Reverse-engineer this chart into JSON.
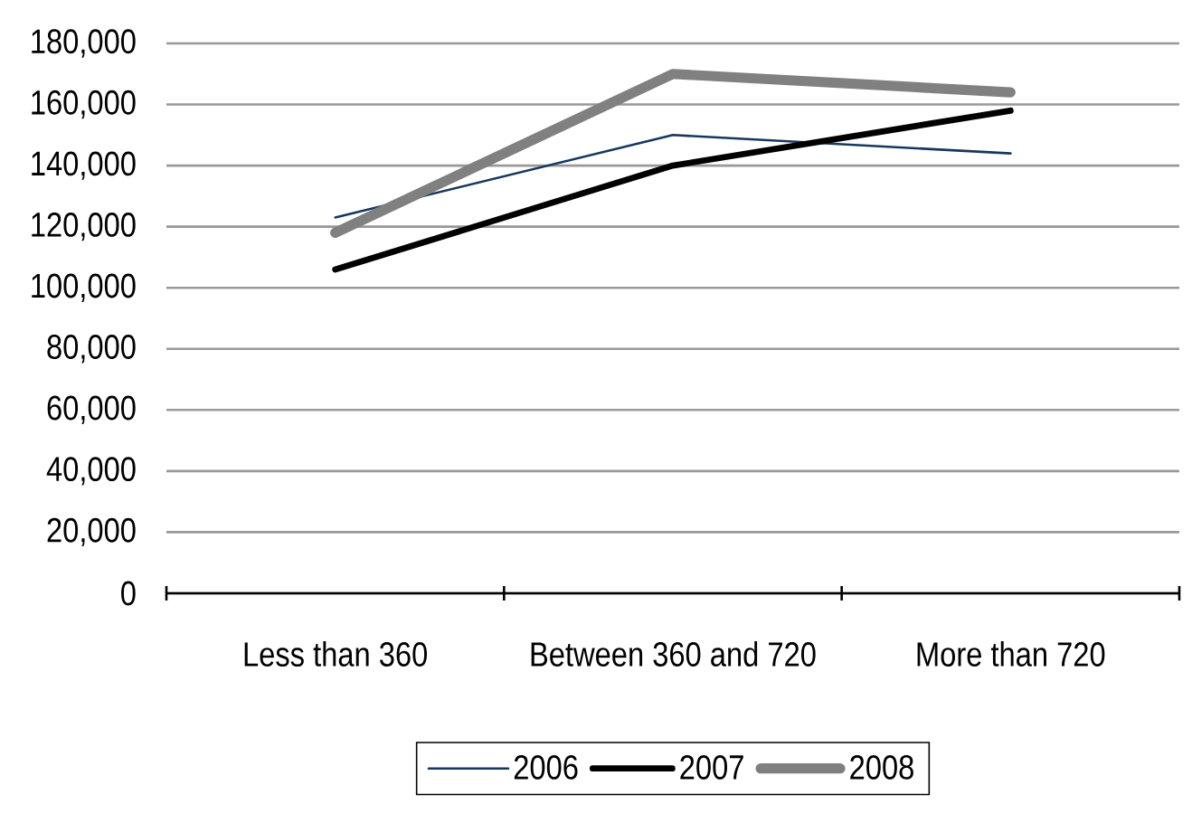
{
  "chart_data": {
    "type": "line",
    "categories": [
      "Less than 360",
      "Between 360 and 720",
      "More than 720"
    ],
    "series": [
      {
        "name": "2006",
        "color": "#17375e",
        "values": [
          123000,
          150000,
          144000
        ]
      },
      {
        "name": "2007",
        "color": "#000000",
        "values": [
          106000,
          140000,
          158000
        ]
      },
      {
        "name": "2008",
        "color": "#808080",
        "values": [
          118000,
          170000,
          164000
        ]
      }
    ],
    "ylim": [
      0,
      180000
    ],
    "yticks": [
      0,
      {
        "value": 20000,
        "label": "20,000"
      },
      {
        "value": 40000,
        "label": "40,000"
      },
      {
        "value": 60000,
        "label": "60,000"
      },
      {
        "value": 80000,
        "label": "80,000"
      },
      {
        "value": 100000,
        "label": "100,000"
      },
      {
        "value": 120000,
        "label": "120,000"
      },
      {
        "value": 140000,
        "label": "140,000"
      },
      {
        "value": 160000,
        "label": "160,000"
      },
      {
        "value": 180000,
        "label": "180,000"
      }
    ],
    "grid": "y",
    "legend": "bottom",
    "marker": "none",
    "line_style": "solid"
  }
}
